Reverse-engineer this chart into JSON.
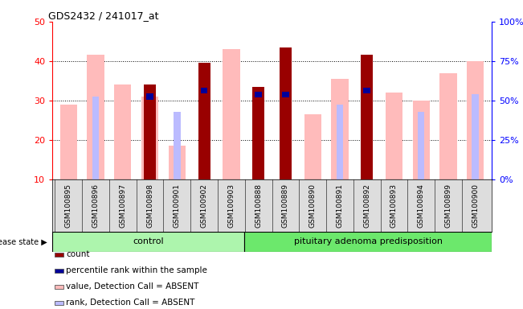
{
  "title": "GDS2432 / 241017_at",
  "samples": [
    "GSM100895",
    "GSM100896",
    "GSM100897",
    "GSM100898",
    "GSM100901",
    "GSM100902",
    "GSM100903",
    "GSM100888",
    "GSM100889",
    "GSM100890",
    "GSM100891",
    "GSM100892",
    "GSM100893",
    "GSM100894",
    "GSM100899",
    "GSM100900"
  ],
  "count": [
    null,
    null,
    null,
    34,
    null,
    39.5,
    null,
    33.5,
    43.5,
    null,
    null,
    41.5,
    null,
    null,
    null,
    null
  ],
  "percentile_rank": [
    null,
    null,
    null,
    31,
    null,
    32.5,
    null,
    31.5,
    31.5,
    null,
    null,
    32.5,
    null,
    null,
    null,
    null
  ],
  "value_absent": [
    29,
    41.5,
    34,
    31,
    18.5,
    null,
    43,
    null,
    null,
    26.5,
    35.5,
    null,
    32,
    30,
    37,
    40
  ],
  "rank_absent": [
    null,
    31,
    null,
    null,
    27,
    32.5,
    null,
    31.5,
    null,
    null,
    29,
    32.5,
    null,
    27,
    null,
    31.5
  ],
  "ylim_left": [
    10,
    50
  ],
  "yticks_left": [
    10,
    20,
    30,
    40,
    50
  ],
  "ytick_right_labels": [
    "0%",
    "25%",
    "50%",
    "75%",
    "100%"
  ],
  "control_color": "#adf5ad",
  "adenoma_color": "#6ce86c",
  "control_count": 7,
  "adenoma_count": 9,
  "disease_state_label": "disease state",
  "group1_label": "control",
  "group2_label": "pituitary adenoma predisposition",
  "legend_items": [
    "count",
    "percentile rank within the sample",
    "value, Detection Call = ABSENT",
    "rank, Detection Call = ABSENT"
  ],
  "legend_colors": [
    "#990000",
    "#000099",
    "#ffbbbb",
    "#bbbbff"
  ],
  "grid_lines": [
    20,
    30,
    40
  ],
  "bar_color_count": "#990000",
  "bar_color_rank": "#000099",
  "bar_color_value_absent": "#ffbbbb",
  "bar_color_rank_absent": "#bbbbff"
}
